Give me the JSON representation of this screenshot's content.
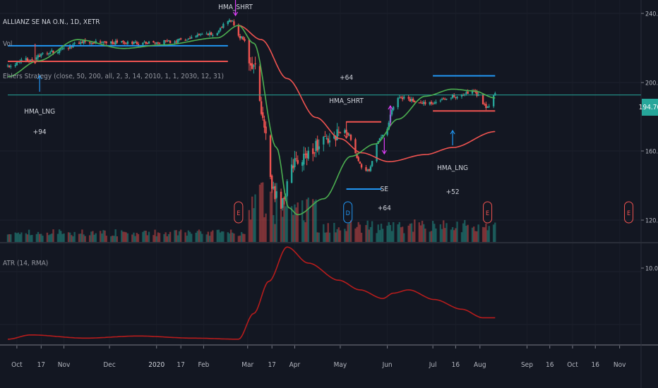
{
  "header": {
    "symbol": "ALLIANZ SE NA O.N., 1D, XETR",
    "vol_label": "Vol",
    "strategy": "Ehlers Strategy (close, 50, 200, all, 2, 3, 14, 2010, 1, 1, 2030, 12, 31)",
    "atr_label": "ATR (14, RMA)"
  },
  "price_axis": {
    "ticks": [
      "240.00",
      "200.00",
      "160.00",
      "120.00"
    ],
    "last_price": "194.70"
  },
  "atr_axis": {
    "ticks": [
      "10.00"
    ]
  },
  "time_axis": {
    "labels": [
      "Oct",
      "17",
      "Nov",
      "Dec",
      "2020",
      "17",
      "Feb",
      "Mar",
      "17",
      "Apr",
      "May",
      "Jun",
      "Jul",
      "16",
      "Aug",
      "Sep",
      "16",
      "Oct",
      "16",
      "Nov"
    ]
  },
  "annotations": {
    "hma_shrt_top": "HMA_SHRT",
    "hma_lng_left": "HMA_LNG",
    "hma_lng_left_profit": "+94",
    "may_profit": "+64",
    "hma_shrt_may": "HMA_SHRT",
    "se_label": "SE",
    "se_profit": "+64",
    "hma_lng_jul": "HMA_LNG",
    "hma_lng_jul_profit": "+52"
  },
  "event_markers": [
    "E",
    "D",
    "E",
    "E"
  ],
  "colors": {
    "background": "#131722",
    "up": "#26a69a",
    "down": "#ef5350",
    "hma_fast": "#4caf50",
    "hma_slow": "#ef5350",
    "long_marker": "#2196f3",
    "short_marker": "#e040fb",
    "atr_line": "#b71c1c",
    "price_line": "#26a69a"
  },
  "chart_data": {
    "type": "candlestick",
    "ylim": [
      110,
      246
    ],
    "atr_ylim": [
      2,
      13
    ],
    "x": [
      "2019-09-25",
      "2020-11-10"
    ],
    "close_keypoints": [
      [
        "2019-09-25",
        211
      ],
      [
        "2019-10-10",
        215
      ],
      [
        "2019-10-24",
        219
      ],
      [
        "2019-11-15",
        225
      ],
      [
        "2019-12-20",
        224
      ],
      [
        "2020-01-10",
        225
      ],
      [
        "2020-02-07",
        229
      ],
      [
        "2020-02-19",
        237
      ],
      [
        "2020-02-26",
        227
      ],
      [
        "2020-03-05",
        210
      ],
      [
        "2020-03-13",
        175
      ],
      [
        "2020-03-17",
        141
      ],
      [
        "2020-03-23",
        133
      ],
      [
        "2020-03-31",
        156
      ],
      [
        "2020-04-20",
        168
      ],
      [
        "2020-05-04",
        174
      ],
      [
        "2020-05-18",
        151
      ],
      [
        "2020-05-29",
        172
      ],
      [
        "2020-06-08",
        193
      ],
      [
        "2020-06-26",
        190
      ],
      [
        "2020-07-14",
        194
      ],
      [
        "2020-07-28",
        196
      ],
      [
        "2020-08-06",
        188
      ],
      [
        "2020-08-11",
        194.7
      ]
    ],
    "hma_fast_keypoints": [
      [
        "2019-09-25",
        205
      ],
      [
        "2019-10-15",
        214
      ],
      [
        "2019-11-10",
        226
      ],
      [
        "2019-12-10",
        221
      ],
      [
        "2020-01-05",
        223
      ],
      [
        "2020-02-10",
        227
      ],
      [
        "2020-02-24",
        234
      ],
      [
        "2020-03-05",
        224
      ],
      [
        "2020-03-20",
        165
      ],
      [
        "2020-03-28",
        131
      ],
      [
        "2020-04-03",
        127
      ],
      [
        "2020-04-20",
        136
      ],
      [
        "2020-05-08",
        160
      ],
      [
        "2020-05-24",
        167
      ],
      [
        "2020-06-08",
        181
      ],
      [
        "2020-06-26",
        194
      ],
      [
        "2020-07-14",
        198
      ],
      [
        "2020-07-28",
        197
      ],
      [
        "2020-08-11",
        193
      ]
    ],
    "hma_slow_keypoints": [
      [
        "2020-02-24",
        234
      ],
      [
        "2020-03-10",
        226
      ],
      [
        "2020-03-27",
        204
      ],
      [
        "2020-04-15",
        182
      ],
      [
        "2020-05-01",
        170
      ],
      [
        "2020-05-15",
        162
      ],
      [
        "2020-06-02",
        157
      ],
      [
        "2020-06-26",
        161
      ],
      [
        "2020-07-14",
        165
      ],
      [
        "2020-08-11",
        174
      ]
    ],
    "atr_keypoints": [
      [
        "2019-09-25",
        3.3
      ],
      [
        "2019-10-10",
        3.7
      ],
      [
        "2019-11-15",
        3.4
      ],
      [
        "2019-12-20",
        3.6
      ],
      [
        "2020-01-25",
        3.4
      ],
      [
        "2020-02-24",
        3.3
      ],
      [
        "2020-03-05",
        5.7
      ],
      [
        "2020-03-15",
        8.7
      ],
      [
        "2020-03-27",
        11.9
      ],
      [
        "2020-04-10",
        10.4
      ],
      [
        "2020-04-30",
        8.8
      ],
      [
        "2020-05-14",
        7.9
      ],
      [
        "2020-05-29",
        7.1
      ],
      [
        "2020-06-05",
        7.6
      ],
      [
        "2020-06-15",
        7.9
      ],
      [
        "2020-07-02",
        7.0
      ],
      [
        "2020-07-20",
        6.1
      ],
      [
        "2020-08-03",
        5.3
      ],
      [
        "2020-08-11",
        5.3
      ]
    ],
    "horizontal_levels": [
      {
        "value": 222.5,
        "from": "2019-09-25",
        "to": "2020-02-17",
        "color": "#2196f3"
      },
      {
        "value": 213.7,
        "from": "2019-09-25",
        "to": "2020-02-17",
        "color": "#ef5350"
      },
      {
        "value": 194.7,
        "from": "2019-09-25",
        "to": "2020-11-10",
        "color": "#26a69a"
      },
      {
        "value": 179.5,
        "from": "2020-05-05",
        "to": "2020-05-28",
        "color": "#ef5350"
      },
      {
        "value": 141.5,
        "from": "2020-05-05",
        "to": "2020-05-28",
        "color": "#2196f3"
      },
      {
        "value": 205.5,
        "from": "2020-07-01",
        "to": "2020-08-11",
        "color": "#2196f3"
      },
      {
        "value": 185.7,
        "from": "2020-07-01",
        "to": "2020-08-11",
        "color": "#ef5350"
      }
    ]
  }
}
